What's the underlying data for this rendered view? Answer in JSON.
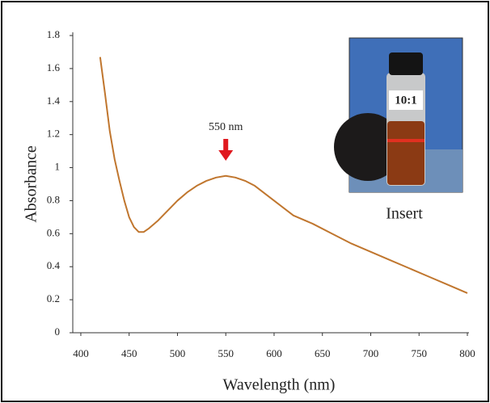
{
  "chart_data": {
    "type": "line",
    "x_label": "Wavelength (nm)",
    "y_label": "Absorbance",
    "x": [
      420,
      425,
      430,
      435,
      440,
      445,
      450,
      455,
      460,
      465,
      470,
      480,
      490,
      500,
      510,
      520,
      530,
      540,
      550,
      560,
      570,
      580,
      600,
      620,
      640,
      660,
      680,
      700,
      720,
      740,
      760,
      780,
      800
    ],
    "series": [
      {
        "color": "#c0762e",
        "values": [
          1.67,
          1.45,
          1.22,
          1.05,
          0.92,
          0.8,
          0.7,
          0.64,
          0.61,
          0.61,
          0.63,
          0.68,
          0.74,
          0.8,
          0.85,
          0.89,
          0.92,
          0.94,
          0.95,
          0.94,
          0.92,
          0.89,
          0.8,
          0.71,
          0.66,
          0.6,
          0.54,
          0.49,
          0.44,
          0.39,
          0.34,
          0.29,
          0.24
        ]
      }
    ],
    "xlim": [
      390,
      800
    ],
    "xticks": [
      400,
      450,
      500,
      550,
      600,
      650,
      700,
      750,
      800
    ],
    "ylim": [
      0,
      1.8
    ],
    "yticks": [
      0,
      0.2,
      0.4,
      0.6,
      0.8,
      1,
      1.2,
      1.4,
      1.6,
      1.8
    ],
    "annotation": {
      "text": "550 nm",
      "x": 550,
      "color": "#e0191f"
    },
    "inset": {
      "label": "10:1",
      "caption": "Insert"
    }
  }
}
